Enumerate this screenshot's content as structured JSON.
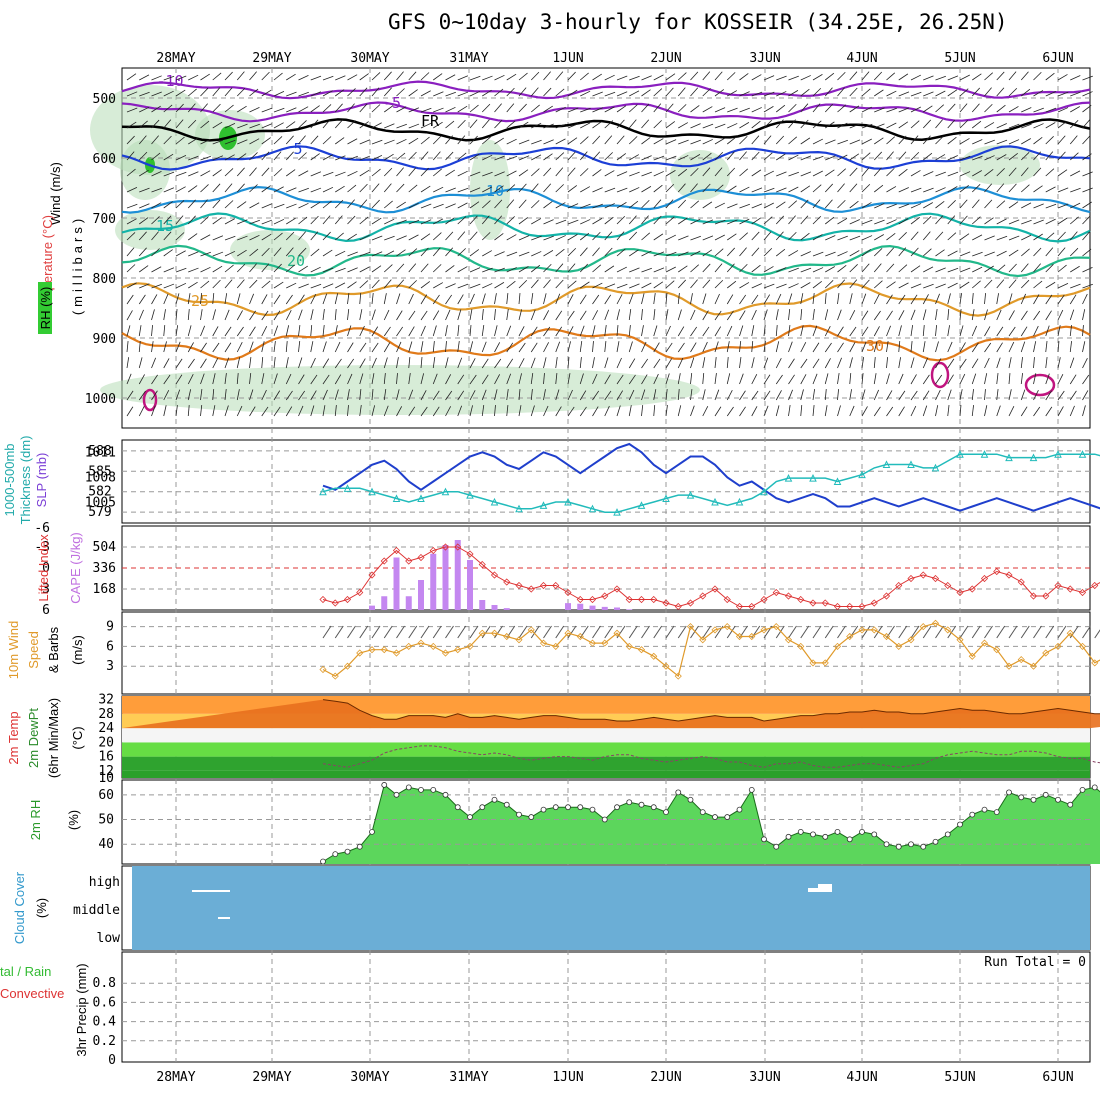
{
  "title": "GFS 0~10day 3-hourly for KOSSEIR (34.25E, 26.25N)",
  "dates": [
    "28MAY",
    "29MAY",
    "30MAY",
    "31MAY",
    "1JUN",
    "2JUN",
    "3JUN",
    "4JUN",
    "5JUN",
    "6JUN"
  ],
  "colors": {
    "accent_purple": "#aa44cc",
    "wind_orange": "#e09a2a",
    "rh_green": "#33cc33",
    "cloud_blue": "#6baed6",
    "slp_blue": "#1f3fcc",
    "thick_cyan": "#22bbbb",
    "red": "#dd3333"
  },
  "panel_labels": {
    "upper": {
      "wind": "Wind (m/s)",
      "temp": "Temperature (°C)",
      "rh": "RH (%)",
      "mb": "(millibars)"
    },
    "slp": {
      "thick": "1000-500mb",
      "thick2": "Thickness (dm)",
      "slp": "SLP (mb)"
    },
    "cape": {
      "li": "Lifted Index",
      "cape": "CAPE (J/kg)"
    },
    "wind10": {
      "a": "10m Wind",
      "b": "Speed",
      "c": "& Barbs",
      "unit": "(m/s)"
    },
    "temp2m": {
      "a": "2m Temp",
      "b": "2m DewPt",
      "c": "(6hr Min/Max)",
      "unit": "(°C)"
    },
    "rh2m": {
      "a": "2m RH",
      "unit": "(%)"
    },
    "cloud": {
      "a": "Cloud Cover",
      "unit": "(%)"
    },
    "precip": {
      "a": "tal / Rain",
      "b": "Convective",
      "c": "3hr Precip (mm)"
    }
  },
  "precip_run_total": "Run Total = 0",
  "upper_pressure_ticks": [
    "500",
    "600",
    "700",
    "800",
    "900",
    "1000"
  ],
  "upper_contours": {
    "temps": [
      "-10",
      "-5",
      "FR",
      "5",
      "10",
      "15",
      "20",
      "25",
      "30"
    ]
  },
  "slp_ticks": {
    "left": [
      "588",
      "585",
      "582",
      "579"
    ],
    "right": [
      "1011",
      "1008",
      "1005"
    ]
  },
  "cape_ticks": {
    "left": [
      "-3",
      "0",
      "3",
      "6"
    ],
    "right": [
      "504",
      "336",
      "168"
    ],
    "top": "-6"
  },
  "wind10_ticks": [
    "9",
    "6",
    "3"
  ],
  "temp2m_ticks": [
    "32",
    "28",
    "24",
    "20",
    "16",
    "12",
    "10"
  ],
  "rh2m_ticks": [
    "60",
    "50",
    "40"
  ],
  "cloud_ticks": [
    "high",
    "middle",
    "low"
  ],
  "precip_ticks": [
    "0.8",
    "0.6",
    "0.4",
    "0.2",
    "0"
  ],
  "chart_data": [
    {
      "type": "line",
      "title": "1000-500mb Thickness (dm) / SLP (mb)",
      "series": [
        {
          "name": "SLP (mb)",
          "unit": "mb",
          "values": [
            1007.0,
            1006.5,
            1007.5,
            1008.5,
            1009.5,
            1010.0,
            1009.0,
            1007.5,
            1006.5,
            1007.5,
            1008.5,
            1009.5,
            1010.5,
            1011.0,
            1010.5,
            1009.5,
            1009.0,
            1010.0,
            1011.0,
            1010.5,
            1009.5,
            1008.5,
            1009.5,
            1010.5,
            1011.5,
            1012.0,
            1011.0,
            1009.5,
            1008.5,
            1009.5,
            1010.5,
            1010.5,
            1009.5,
            1008.0,
            1007.0,
            1007.5,
            1006.5,
            1005.5,
            1005.0,
            1005.5,
            1006.0,
            1005.5,
            1004.5,
            1004.5,
            1005.0,
            1005.5,
            1005.0,
            1004.5,
            1005.0,
            1005.5,
            1005.0,
            1004.5,
            1004.0,
            1004.5,
            1005.0,
            1005.5,
            1005.0,
            1004.5,
            1004.0,
            1004.5,
            1005.0,
            1005.5,
            1005.0,
            1004.5,
            1004.0,
            1004.0,
            1004.5,
            1004.5,
            1004.0,
            1004.0,
            1004.0,
            1004.0,
            1004.0,
            1004.5,
            1004.5,
            1004.5,
            1004.0,
            1004.5,
            1004.5,
            1005.0
          ]
        },
        {
          "name": "1000-500mb Thickness (dm)",
          "unit": "dm",
          "values": [
            582.0,
            582.5,
            582.5,
            582.5,
            582.0,
            581.5,
            581.0,
            580.5,
            581.0,
            581.5,
            582.0,
            582.0,
            581.5,
            581.0,
            580.5,
            580.0,
            579.5,
            579.5,
            580.0,
            580.5,
            580.5,
            580.0,
            579.5,
            579.0,
            579.0,
            579.5,
            580.0,
            580.5,
            581.0,
            581.5,
            581.5,
            581.0,
            580.5,
            580.0,
            580.5,
            581.0,
            582.0,
            583.5,
            584.0,
            584.0,
            584.0,
            584.0,
            583.5,
            584.0,
            584.5,
            585.5,
            586.0,
            586.0,
            586.0,
            585.5,
            585.5,
            586.5,
            587.5,
            587.5,
            587.5,
            587.5,
            587.0,
            587.0,
            587.0,
            587.0,
            587.5,
            587.5,
            587.5,
            587.5,
            587.0,
            586.5,
            587.0,
            587.5,
            588.0,
            588.0,
            587.5,
            587.5,
            587.5,
            587.0,
            587.5,
            588.0,
            588.5,
            588.5,
            588.0,
            588.5
          ]
        }
      ],
      "ylim_left": [
        578,
        589
      ],
      "ylim_right": [
        1003,
        1012
      ]
    },
    {
      "type": "bar",
      "title": "CAPE (J/kg) / Lifted Index",
      "series": [
        {
          "name": "CAPE (J/kg)",
          "unit": "J/kg",
          "values": [
            0,
            0,
            0,
            0,
            35,
            110,
            420,
            110,
            240,
            450,
            520,
            560,
            400,
            80,
            40,
            15,
            0,
            0,
            0,
            0,
            55,
            50,
            35,
            25,
            20,
            5,
            0,
            0,
            0,
            0,
            0,
            0,
            0,
            0,
            0,
            0,
            0,
            0,
            0,
            0,
            0,
            0,
            0,
            0,
            0,
            0,
            0,
            0,
            0,
            0,
            0,
            0,
            0,
            0,
            0,
            0,
            0,
            0,
            0,
            0,
            0,
            0,
            0,
            0,
            0,
            0,
            0,
            0,
            0,
            0,
            0,
            0,
            0,
            0,
            0,
            0,
            0,
            0,
            0,
            0
          ]
        },
        {
          "name": "Lifted Index",
          "unit": "",
          "values": [
            4.5,
            5.0,
            4.5,
            3.5,
            1.0,
            -1.0,
            -2.5,
            -1.0,
            -1.5,
            -2.5,
            -3.0,
            -3.0,
            -2.0,
            -0.5,
            1.0,
            2.0,
            2.5,
            3.0,
            2.5,
            2.5,
            3.5,
            4.5,
            4.5,
            4.0,
            3.0,
            4.5,
            4.5,
            4.5,
            5.0,
            5.5,
            5.0,
            4.0,
            3.0,
            4.5,
            5.5,
            5.5,
            4.5,
            3.5,
            4.0,
            4.5,
            5.0,
            5.0,
            5.5,
            5.5,
            5.5,
            5.0,
            4.0,
            2.5,
            1.5,
            1.0,
            1.5,
            2.5,
            3.5,
            3.0,
            1.5,
            0.5,
            1.0,
            2.0,
            4.0,
            4.0,
            2.5,
            3.0,
            3.5,
            2.5,
            1.5,
            1.0,
            1.5,
            3.0,
            4.5,
            5.0,
            3.5,
            2.5,
            2.0,
            2.5,
            3.5,
            4.0,
            5.0,
            6.5,
            5.5,
            4.0
          ]
        }
      ],
      "ylim_left_li": [
        6,
        -6
      ],
      "ylim_right_cape": [
        0,
        672
      ]
    },
    {
      "type": "line",
      "title": "10m Wind Speed & Barbs",
      "series": [
        {
          "name": "10m Wind Speed",
          "unit": "m/s",
          "values": [
            2.5,
            1.5,
            3.0,
            5.0,
            5.5,
            5.5,
            5.0,
            6.0,
            6.5,
            6.0,
            5.0,
            5.5,
            6.0,
            8.0,
            8.0,
            7.5,
            7.0,
            8.5,
            6.5,
            6.0,
            8.0,
            7.5,
            6.5,
            6.5,
            8.0,
            6.0,
            5.5,
            4.5,
            3.0,
            1.5,
            9.0,
            7.0,
            8.5,
            9.0,
            7.5,
            7.5,
            8.5,
            9.0,
            7.0,
            6.0,
            3.5,
            3.5,
            6.0,
            7.5,
            8.5,
            8.5,
            7.5,
            6.0,
            7.0,
            9.0,
            9.5,
            8.5,
            7.0,
            4.5,
            6.5,
            5.5,
            3.0,
            4.0,
            3.0,
            5.0,
            6.0,
            8.0,
            6.0,
            3.5,
            4.5,
            5.5,
            4.5,
            2.0,
            0.5,
            3.5,
            5.5,
            5.5,
            5.5,
            5.5,
            5.0,
            6.0,
            5.5,
            6.5,
            5.0,
            7.0
          ]
        }
      ],
      "ylim": [
        0,
        10
      ]
    },
    {
      "type": "area",
      "title": "2m Temp / 2m DewPt (6hr Min/Max)",
      "series": [
        {
          "name": "2m Temp",
          "unit": "°C",
          "values": [
            32.0,
            31.5,
            31.0,
            29.0,
            27.5,
            26.5,
            26.5,
            27.5,
            27.5,
            27.5,
            27.0,
            28.0,
            27.0,
            27.0,
            27.5,
            27.0,
            26.5,
            27.0,
            27.5,
            27.5,
            27.0,
            26.5,
            26.5,
            26.5,
            26.0,
            26.0,
            26.5,
            27.0,
            26.5,
            26.0,
            26.5,
            27.0,
            27.5,
            27.0,
            27.0,
            27.0,
            26.0,
            26.5,
            27.0,
            27.5,
            27.5,
            28.0,
            28.0,
            28.5,
            28.5,
            29.0,
            28.5,
            28.5,
            28.0,
            28.0,
            28.5,
            29.0,
            29.5,
            29.0,
            29.0,
            28.5,
            28.0,
            28.0,
            28.5,
            29.0,
            29.5,
            29.0,
            28.5,
            28.0,
            28.0,
            28.5,
            29.0,
            29.5,
            29.5,
            29.0,
            28.5,
            28.5,
            29.0,
            29.5,
            30.0,
            30.0,
            30.0,
            29.5,
            29.0,
            30.0
          ]
        },
        {
          "name": "2m DewPt",
          "unit": "°C",
          "values": [
            14.0,
            13.5,
            13.0,
            14.0,
            15.0,
            17.0,
            18.0,
            18.5,
            19.0,
            19.0,
            18.5,
            17.5,
            17.0,
            16.5,
            17.0,
            16.5,
            15.5,
            15.0,
            15.5,
            16.0,
            16.0,
            15.5,
            15.0,
            16.0,
            16.5,
            16.5,
            15.5,
            15.0,
            14.5,
            15.0,
            15.5,
            16.0,
            15.5,
            14.5,
            14.5,
            13.5,
            13.0,
            14.0,
            14.0,
            14.5,
            13.5,
            13.0,
            13.0,
            13.5,
            14.0,
            14.0,
            13.5,
            13.0,
            13.5,
            14.0,
            15.5,
            16.5,
            17.0,
            17.5,
            17.0,
            16.5,
            16.5,
            17.5,
            17.5,
            17.0,
            16.0,
            15.5,
            15.5,
            14.5,
            14.0,
            13.5,
            14.0,
            14.5,
            14.5,
            15.0,
            15.5,
            15.5,
            15.0,
            14.5,
            14.0,
            14.0,
            13.5,
            12.5,
            13.0,
            14.0
          ]
        }
      ],
      "ylim": [
        10,
        33
      ]
    },
    {
      "type": "area",
      "title": "2m RH",
      "series": [
        {
          "name": "2m RH",
          "unit": "%",
          "values": [
            33,
            36,
            37,
            39,
            45,
            64,
            60,
            63,
            62,
            62,
            60,
            55,
            51,
            55,
            58,
            56,
            52,
            51,
            54,
            55,
            55,
            55,
            54,
            50,
            55,
            57,
            56,
            55,
            53,
            61,
            58,
            53,
            51,
            51,
            54,
            62,
            42,
            39,
            43,
            45,
            44,
            43,
            45,
            42,
            45,
            44,
            40,
            39,
            40,
            39,
            41,
            44,
            48,
            52,
            54,
            53,
            61,
            59,
            58,
            60,
            58,
            56,
            62,
            63,
            59,
            55,
            62,
            58,
            57,
            54,
            58,
            53,
            50,
            47,
            50,
            51,
            49,
            47,
            40,
            48
          ]
        }
      ],
      "ylim": [
        32,
        66
      ]
    },
    {
      "type": "bar",
      "title": "3hr Precip (mm)",
      "series": [
        {
          "name": "3hr Precip",
          "unit": "mm",
          "values": [
            0,
            0,
            0,
            0,
            0,
            0,
            0,
            0,
            0,
            0,
            0,
            0,
            0,
            0,
            0,
            0,
            0,
            0,
            0,
            0,
            0,
            0,
            0,
            0,
            0,
            0,
            0,
            0,
            0,
            0,
            0,
            0,
            0,
            0,
            0,
            0,
            0,
            0,
            0,
            0,
            0,
            0,
            0,
            0,
            0,
            0,
            0,
            0,
            0,
            0,
            0,
            0,
            0,
            0,
            0,
            0,
            0,
            0,
            0,
            0,
            0,
            0,
            0,
            0,
            0,
            0,
            0,
            0,
            0,
            0,
            0,
            0,
            0,
            0,
            0,
            0,
            0,
            0,
            0,
            0
          ]
        }
      ],
      "ylim": [
        0,
        1.0
      ]
    }
  ]
}
